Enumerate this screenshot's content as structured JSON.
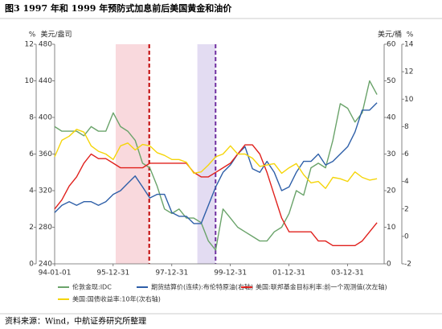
{
  "chart_data": {
    "type": "line",
    "title": "图3 1997 年和 1999 年预防式加息前后美国黄金和油价",
    "source": "资料来源：Wind，中航证券研究所整理",
    "axis_labels": {
      "y3": "%",
      "y": "美元/盎司",
      "y2": "美元/桶",
      "y4": "%"
    },
    "x": [
      "1994-01-01",
      "1994-04-01",
      "1994-07-01",
      "1994-10-01",
      "1995-01-01",
      "1995-04-01",
      "1995-07-01",
      "1995-10-01",
      "1996-01-01",
      "1996-04-01",
      "1996-07-01",
      "1996-10-01",
      "1997-01-01",
      "1997-04-01",
      "1997-07-01",
      "1997-10-01",
      "1998-01-01",
      "1998-04-01",
      "1998-07-01",
      "1998-10-01",
      "1999-01-01",
      "1999-04-01",
      "1999-07-01",
      "1999-10-01",
      "2000-01-01",
      "2000-04-01",
      "2000-07-01",
      "2000-10-01",
      "2001-01-01",
      "2001-04-01",
      "2001-07-01",
      "2001-10-01",
      "2002-01-01",
      "2002-04-01",
      "2002-07-01",
      "2002-10-01",
      "2003-01-01",
      "2003-04-01",
      "2003-07-01",
      "2003-10-01",
      "2004-01-01",
      "2004-04-01",
      "2004-07-01",
      "2004-10-01",
      "2005-01-01"
    ],
    "xlim": [
      "1994-01-01",
      "2005-03-31"
    ],
    "xticks": [
      {
        "value": "1994-01-01",
        "label": "94-01-01"
      },
      {
        "value": "1995-12-31",
        "label": "95-12-31"
      },
      {
        "value": "1997-12-31",
        "label": "97-12-31"
      },
      {
        "value": "1999-12-31",
        "label": "99-12-31"
      },
      {
        "value": "2001-12-31",
        "label": "01-12-31"
      },
      {
        "value": "2003-12-31",
        "label": "03-12-31"
      }
    ],
    "ylim": [
      240,
      480
    ],
    "yticks": [
      240,
      280,
      320,
      360,
      400,
      440,
      480
    ],
    "y2lim": [
      0,
      60
    ],
    "y2ticks": [
      0,
      10,
      20,
      30,
      40,
      50,
      60
    ],
    "y3lim": [
      0,
      12
    ],
    "y3ticks": [
      0,
      2,
      4,
      6,
      8,
      10,
      12
    ],
    "y4lim": [
      -2,
      14
    ],
    "y4ticks": [
      -2,
      0,
      2,
      4,
      6,
      8,
      10,
      12,
      14
    ],
    "shaded_regions": [
      {
        "start": "1996-02-01",
        "end": "1997-03-25",
        "color": "#f9d9dd",
        "marker_color": "#c00000"
      },
      {
        "start": "1998-11-15",
        "end": "1999-06-30",
        "color": "#e3dcf2",
        "marker_color": "#7030a0"
      }
    ],
    "series": [
      {
        "name": "伦敦金现:IDC",
        "color": "#6aa36a",
        "axis": "y",
        "values": [
          390,
          385,
          385,
          385,
          380,
          390,
          385,
          385,
          405,
          390,
          385,
          375,
          350,
          345,
          325,
          300,
          295,
          300,
          290,
          290,
          285,
          265,
          255,
          300,
          290,
          280,
          275,
          270,
          265,
          265,
          275,
          280,
          295,
          320,
          315,
          345,
          350,
          345,
          375,
          415,
          410,
          395,
          405,
          440,
          425
        ]
      },
      {
        "name": "期货结算价(连续):布伦特原油(右轴)",
        "color": "#2e5fa8",
        "axis": "y2",
        "values": [
          14,
          16,
          17,
          16,
          17,
          17,
          16,
          17,
          19,
          20,
          22,
          24,
          21,
          18,
          19,
          19,
          14,
          13,
          13,
          11,
          11,
          16,
          21,
          25,
          27,
          30,
          32,
          26,
          25,
          28,
          25,
          20,
          21,
          25,
          28,
          28,
          30,
          27,
          28,
          30,
          32,
          36,
          42,
          42,
          44
        ]
      },
      {
        "name": "美国:联邦基金目标利率:前一个观测值(次左轴)",
        "color": "#e0201c",
        "axis": "y3",
        "values": [
          3.0,
          3.5,
          4.25,
          4.75,
          5.5,
          6.0,
          5.75,
          5.75,
          5.5,
          5.25,
          5.25,
          5.25,
          5.25,
          5.5,
          5.5,
          5.5,
          5.5,
          5.5,
          5.5,
          5.0,
          4.75,
          4.75,
          5.0,
          5.25,
          5.5,
          6.0,
          6.5,
          6.5,
          6.0,
          5.0,
          3.75,
          2.5,
          1.75,
          1.75,
          1.75,
          1.75,
          1.25,
          1.25,
          1.0,
          1.0,
          1.0,
          1.0,
          1.25,
          1.75,
          2.25
        ]
      },
      {
        "name": "美国:国债收益率:10年(次右轴)",
        "color": "#f5d50a",
        "axis": "y4",
        "values": [
          5.8,
          7.0,
          7.3,
          7.8,
          7.6,
          6.6,
          6.2,
          6.0,
          5.6,
          6.6,
          6.8,
          6.3,
          6.7,
          6.6,
          6.1,
          5.9,
          5.6,
          5.6,
          5.4,
          4.6,
          4.7,
          5.2,
          5.8,
          6.0,
          6.6,
          6.0,
          6.0,
          5.7,
          5.1,
          5.2,
          5.3,
          4.6,
          5.0,
          5.3,
          4.5,
          3.9,
          4.0,
          3.5,
          4.3,
          4.2,
          4.0,
          4.7,
          4.3,
          4.1,
          4.2
        ]
      }
    ]
  }
}
